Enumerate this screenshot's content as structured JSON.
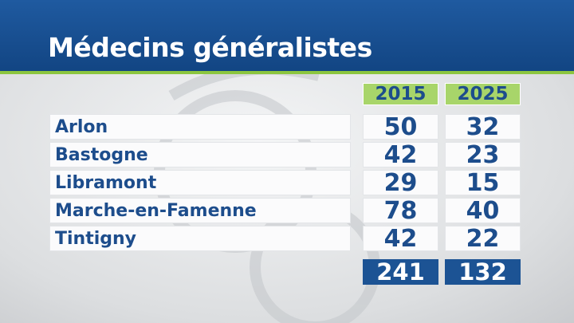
{
  "header": {
    "title": "Médecins généralistes"
  },
  "table": {
    "columns": [
      "2015",
      "2025"
    ],
    "rows": [
      [
        "Arlon",
        50,
        32
      ],
      [
        "Bastogne",
        42,
        23
      ],
      [
        "Libramont",
        29,
        15
      ],
      [
        "Marche-en-Famenne",
        78,
        40
      ],
      [
        "Tintigny",
        42,
        22
      ]
    ],
    "totals": [
      241,
      132
    ]
  }
}
